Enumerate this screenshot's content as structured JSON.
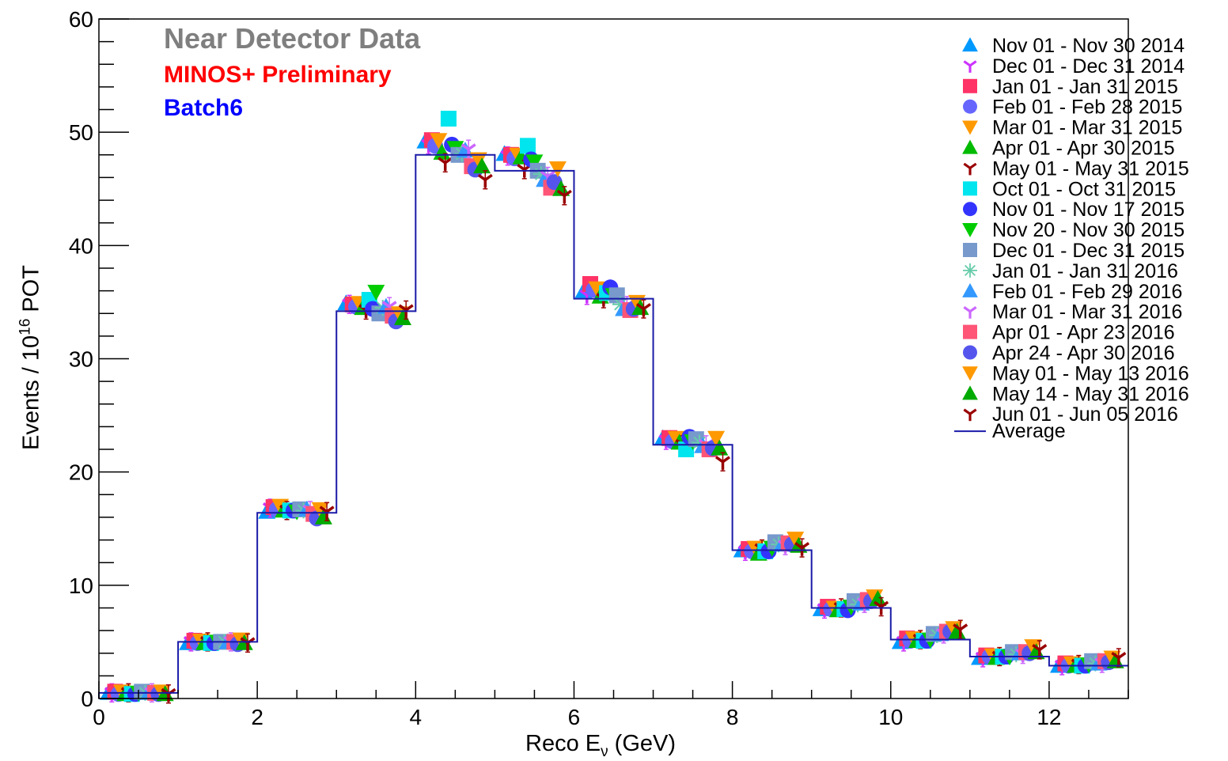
{
  "chart_data": {
    "type": "line",
    "annotations": {
      "title": "Near Detector Data",
      "preliminary": "MINOS+ Preliminary",
      "batch": "Batch6"
    },
    "xlabel": "Reco E",
    "xlabel_sub": "ν",
    "xlabel_unit": " (GeV)",
    "ylabel": "Events / 10",
    "ylabel_sup": "16",
    "ylabel_unit": " POT",
    "xlim": [
      0,
      13
    ],
    "ylim": [
      0,
      60
    ],
    "x_ticks": [
      0,
      2,
      4,
      6,
      8,
      10,
      12
    ],
    "y_ticks": [
      0,
      10,
      20,
      30,
      40,
      50,
      60
    ],
    "grid": false,
    "legend_position": "top-right",
    "bin_edges": [
      0,
      1,
      2,
      3,
      4,
      5,
      6,
      7,
      8,
      9,
      10,
      11,
      12,
      13
    ],
    "average": [
      0.5,
      5.0,
      16.4,
      34.2,
      48.0,
      46.6,
      35.3,
      22.4,
      13.1,
      8.0,
      5.2,
      3.7,
      2.9
    ],
    "series": [
      {
        "name": "Nov 01 - Nov 30 2014",
        "marker": "triangle-up",
        "color": "#0099ff",
        "values": [
          0.5,
          4.9,
          16.5,
          34.9,
          49.2,
          48.1,
          36.0,
          23.0,
          13.1,
          7.9,
          5.0,
          3.6,
          2.9
        ]
      },
      {
        "name": "Dec 01 - Dec 31 2014",
        "marker": "tri-star",
        "color": "#cc33ff",
        "values": [
          0.5,
          5.0,
          16.8,
          34.8,
          48.9,
          47.9,
          35.6,
          22.8,
          13.0,
          7.9,
          5.0,
          3.6,
          2.9
        ]
      },
      {
        "name": "Jan 01 - Jan 31 2015",
        "marker": "square",
        "color": "#ff3366",
        "values": [
          0.6,
          5.1,
          16.9,
          34.8,
          49.3,
          48.0,
          36.6,
          23.0,
          13.2,
          8.1,
          5.3,
          3.8,
          3.1
        ]
      },
      {
        "name": "Feb 01 - Feb 28 2015",
        "marker": "circle",
        "color": "#6666ff",
        "values": [
          0.4,
          4.9,
          16.7,
          34.6,
          48.8,
          47.7,
          36.1,
          22.7,
          13.0,
          7.9,
          5.1,
          3.7,
          2.9
        ]
      },
      {
        "name": "Mar 01 - Mar 31 2015",
        "marker": "triangle-down",
        "color": "#ff9900",
        "values": [
          0.6,
          5.1,
          17.0,
          34.9,
          49.3,
          48.0,
          36.2,
          23.0,
          13.3,
          8.0,
          5.3,
          3.8,
          3.1
        ]
      },
      {
        "name": "Apr 01 - Apr 30 2015",
        "marker": "triangle-up",
        "color": "#00bb00",
        "values": [
          0.4,
          4.9,
          16.6,
          34.5,
          48.2,
          47.8,
          35.5,
          22.6,
          12.8,
          7.8,
          5.1,
          3.6,
          2.9
        ]
      },
      {
        "name": "May 01 - May 31 2015",
        "marker": "tri-star",
        "color": "#990000",
        "values": [
          0.5,
          5.0,
          16.6,
          34.3,
          47.3,
          46.7,
          35.3,
          22.4,
          13.2,
          8.0,
          5.2,
          3.7,
          3.0
        ]
      },
      {
        "name": "Oct 01 - Oct 31 2015",
        "marker": "square",
        "color": "#00e5ee",
        "values": [
          0.4,
          4.9,
          16.6,
          35.2,
          51.2,
          48.8,
          35.8,
          22.0,
          13.0,
          7.9,
          5.1,
          3.7,
          2.9
        ]
      },
      {
        "name": "Nov 01 - Nov 17 2015",
        "marker": "circle",
        "color": "#3333ff",
        "values": [
          0.4,
          4.9,
          16.6,
          34.4,
          48.9,
          47.6,
          36.3,
          23.1,
          13.0,
          7.8,
          5.1,
          3.7,
          2.9
        ]
      },
      {
        "name": "Nov 20 - Nov 30 2015",
        "marker": "triangle-down",
        "color": "#00cc00",
        "values": [
          0.5,
          5.0,
          16.5,
          35.9,
          48.6,
          47.4,
          35.6,
          22.7,
          13.3,
          8.1,
          5.2,
          3.7,
          3.0
        ]
      },
      {
        "name": "Dec 01 - Dec 31 2015",
        "marker": "square",
        "color": "#7799cc",
        "values": [
          0.6,
          5.0,
          16.7,
          34.0,
          48.0,
          46.6,
          35.6,
          22.9,
          13.8,
          8.6,
          5.7,
          4.1,
          3.3
        ]
      },
      {
        "name": "Jan 01 - Jan 31 2016",
        "marker": "asterisk",
        "color": "#66ccaa",
        "values": [
          0.5,
          5.0,
          16.6,
          34.5,
          48.1,
          46.3,
          34.8,
          22.6,
          13.6,
          8.3,
          5.6,
          3.9,
          3.1
        ]
      },
      {
        "name": "Feb 01 - Feb 29 2016",
        "marker": "triangle-up",
        "color": "#3399ff",
        "values": [
          0.5,
          5.0,
          16.7,
          34.6,
          48.4,
          45.8,
          34.4,
          22.3,
          13.6,
          8.4,
          5.7,
          4.0,
          3.1
        ]
      },
      {
        "name": "Mar 01 - Mar 31 2016",
        "marker": "tri-star",
        "color": "#cc66ff",
        "values": [
          0.5,
          5.0,
          16.6,
          34.6,
          48.5,
          46.1,
          34.7,
          22.4,
          13.5,
          8.4,
          5.7,
          3.9,
          3.1
        ]
      },
      {
        "name": "Apr 01 - Apr 23 2016",
        "marker": "square",
        "color": "#ff5577",
        "values": [
          0.5,
          5.0,
          16.3,
          33.8,
          47.0,
          45.1,
          34.3,
          22.0,
          13.7,
          8.7,
          5.9,
          4.1,
          3.3
        ]
      },
      {
        "name": "Apr 24 - Apr 30 2016",
        "marker": "circle",
        "color": "#5555ee",
        "values": [
          0.4,
          4.8,
          15.9,
          33.3,
          46.7,
          45.6,
          34.4,
          22.1,
          13.6,
          8.6,
          5.9,
          4.0,
          3.2
        ]
      },
      {
        "name": "May 01 - May 13 2016",
        "marker": "triangle-down",
        "color": "#ff9900",
        "values": [
          0.6,
          5.2,
          16.7,
          34.0,
          47.6,
          46.8,
          35.0,
          23.0,
          14.1,
          9.0,
          6.2,
          4.6,
          3.6
        ]
      },
      {
        "name": "May 14 - May 31 2016",
        "marker": "triangle-up",
        "color": "#00aa00",
        "values": [
          0.4,
          4.9,
          16.0,
          33.6,
          47.0,
          45.0,
          34.5,
          22.1,
          13.5,
          8.8,
          5.9,
          4.1,
          3.3
        ]
      },
      {
        "name": "Jun 01 - Jun 05 2016",
        "marker": "tri-star",
        "color": "#990000",
        "values": [
          0.4,
          4.9,
          16.5,
          34.3,
          45.8,
          44.4,
          34.4,
          20.9,
          13.3,
          8.1,
          6.1,
          4.3,
          3.6
        ]
      }
    ],
    "average_label": "Average",
    "average_color": "#1a1aa8"
  }
}
